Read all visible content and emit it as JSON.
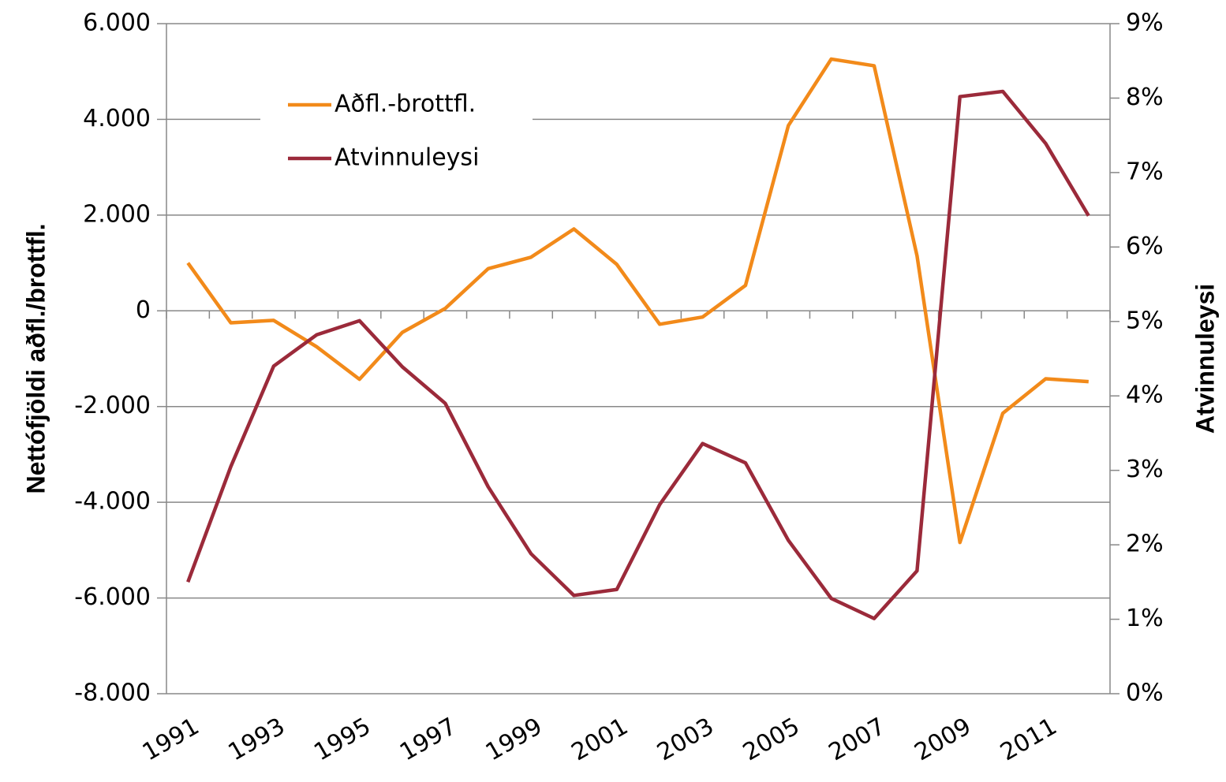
{
  "chart_data": {
    "type": "line",
    "y_label": "Nettófjöldi aðfl./brottfl.",
    "y2_label": "Atvinnuleysi",
    "categories": [
      "1991",
      null,
      "1993",
      null,
      "1995",
      null,
      "1997",
      null,
      "1999",
      null,
      "2001",
      null,
      "2003",
      null,
      "2005",
      null,
      "2007",
      null,
      "2009",
      null,
      "2011",
      null
    ],
    "series": [
      {
        "name": "Aðfl.-brottfl.",
        "color": "#f28a1a",
        "values": [
          1000,
          -250,
          -200,
          -750,
          -1430,
          -450,
          50,
          880,
          1120,
          1710,
          970,
          -280,
          -130,
          530,
          3870,
          5260,
          5120,
          1150,
          -4840,
          -2140,
          -1420,
          -1480
        ]
      },
      {
        "name": "Atvinnuleysi",
        "color": "#9b2a3a",
        "axis": "y2",
        "values": [
          1.5,
          3.05,
          4.4,
          4.82,
          5.01,
          4.39,
          3.9,
          2.78,
          1.88,
          1.32,
          1.4,
          2.54,
          3.36,
          3.1,
          2.06,
          1.28,
          1.01,
          1.65,
          8.02,
          8.09,
          7.39,
          6.42
        ]
      }
    ],
    "ylim": [
      -8000,
      6000
    ],
    "yticks": [
      {
        "value": -8000,
        "label": "-8.000"
      },
      {
        "value": -6000,
        "label": "-6.000"
      },
      {
        "value": -4000,
        "label": "-4.000"
      },
      {
        "value": -2000,
        "label": "-2.000"
      },
      0,
      {
        "value": 2000,
        "label": "2.000"
      },
      {
        "value": 4000,
        "label": "4.000"
      },
      {
        "value": 6000,
        "label": "6.000"
      }
    ],
    "y2lim": [
      0,
      9
    ],
    "y2ticks": [
      {
        "value": 0,
        "label": "0%"
      },
      {
        "value": 1,
        "label": "1%"
      },
      {
        "value": 2,
        "label": "2%"
      },
      {
        "value": 3,
        "label": "3%"
      },
      {
        "value": 4,
        "label": "4%"
      },
      {
        "value": 5,
        "label": "5%"
      },
      {
        "value": 6,
        "label": "6%"
      },
      {
        "value": 7,
        "label": "7%"
      },
      {
        "value": 8,
        "label": "8%"
      },
      {
        "value": 9,
        "label": "9%"
      }
    ],
    "grid": true,
    "legend": "upper left"
  }
}
